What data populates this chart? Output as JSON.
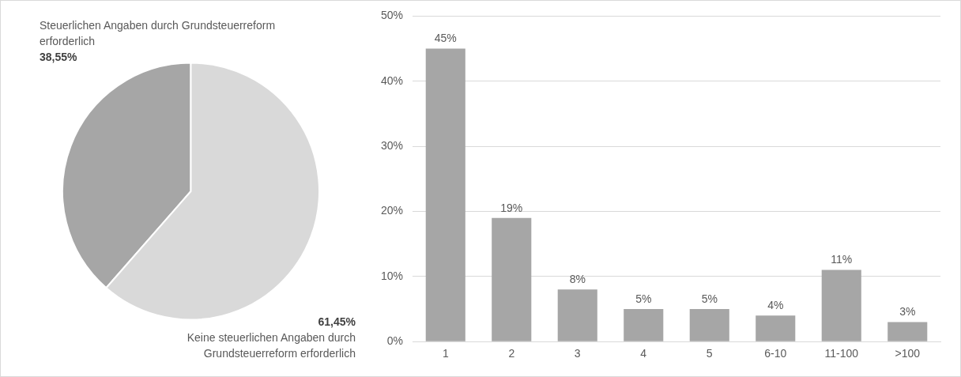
{
  "chart_data": [
    {
      "type": "pie",
      "categories": [
        "Steuerlichen Angaben durch Grundsteuerreform erforderlich",
        "Keine steuerlichen Angaben durch Grundsteuerreform erforderlich"
      ],
      "values": [
        38.55,
        61.45
      ],
      "colors": [
        "#a6a6a6",
        "#d9d9d9"
      ],
      "value_labels": [
        "38,55%",
        "61,45%"
      ]
    },
    {
      "type": "bar",
      "categories": [
        "1",
        "2",
        "3",
        "4",
        "5",
        "6-10",
        "11-100",
        ">100"
      ],
      "values": [
        45,
        19,
        8,
        5,
        5,
        4,
        11,
        3
      ],
      "color": "#a6a6a6",
      "value_labels": [
        "45%",
        "19%",
        "8%",
        "5%",
        "5%",
        "4%",
        "11%",
        "3%"
      ],
      "ylim": [
        0,
        50
      ],
      "yticks": [
        {
          "value": 0,
          "label": "0%"
        },
        {
          "value": 10,
          "label": "10%"
        },
        {
          "value": 20,
          "label": "20%"
        },
        {
          "value": 30,
          "label": "30%"
        },
        {
          "value": 40,
          "label": "40%"
        },
        {
          "value": 50,
          "label": "50%"
        }
      ],
      "grid": "y"
    }
  ]
}
